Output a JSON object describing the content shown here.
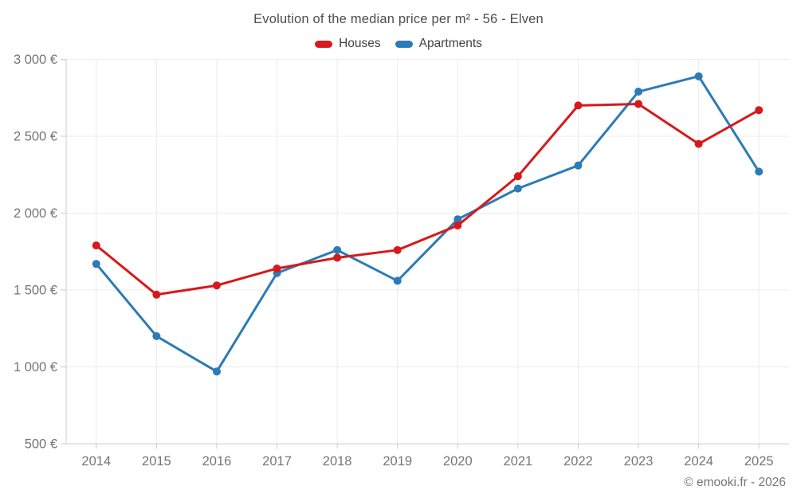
{
  "footer": "© emooki.fr - 2026",
  "chart_data": {
    "type": "line",
    "title": "Evolution of the median price per m² - 56 - Elven",
    "categories": [
      "2014",
      "2015",
      "2016",
      "2017",
      "2018",
      "2019",
      "2020",
      "2021",
      "2022",
      "2023",
      "2024",
      "2025"
    ],
    "series": [
      {
        "name": "Houses",
        "color": "#d7191c",
        "values": [
          1790,
          1470,
          1530,
          1640,
          1710,
          1760,
          1920,
          2240,
          2700,
          2710,
          2450,
          2670
        ]
      },
      {
        "name": "Apartments",
        "color": "#2c7bb6",
        "values": [
          1670,
          1200,
          970,
          1610,
          1760,
          1560,
          1960,
          2160,
          2310,
          2790,
          2890,
          2270
        ]
      }
    ],
    "xlabel": "",
    "ylabel": "",
    "ylim": [
      500,
      3000
    ],
    "ytick_step": 500,
    "ytick_labels": [
      "500 €",
      "1 000 €",
      "1 500 €",
      "2 000 €",
      "2 500 €",
      "3 000 €"
    ],
    "grid": true,
    "legend_position": "top",
    "marker": "circle"
  },
  "style_colors": {
    "title_text": "#4d4d4d",
    "legend_text": "#424242",
    "axis_tick_text": "#757575",
    "grid_line": "#ececec",
    "axis_line": "#cccccc"
  }
}
